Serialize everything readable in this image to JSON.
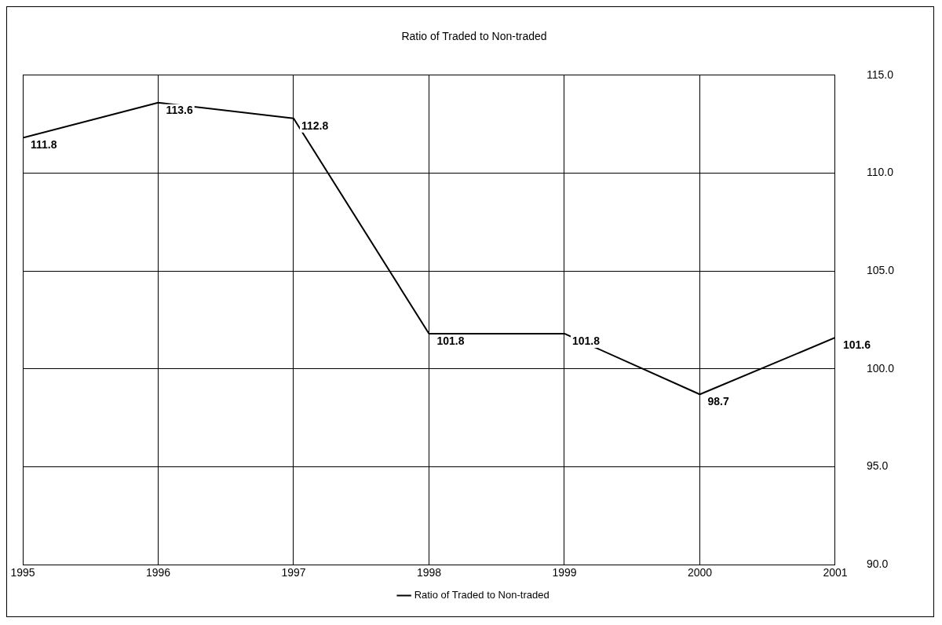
{
  "chart_data": {
    "type": "line",
    "title": "Ratio of Traded to Non-traded",
    "x": [
      1995,
      1996,
      1997,
      1998,
      1999,
      2000,
      2001
    ],
    "series": [
      {
        "name": "Ratio of Traded to Non-traded",
        "color": "#000000",
        "values": [
          111.8,
          113.6,
          112.8,
          101.8,
          101.8,
          98.7,
          101.6
        ]
      }
    ],
    "xlim": [
      1995,
      2001
    ],
    "xticks": [
      1995,
      1996,
      1997,
      1998,
      1999,
      2000,
      2001
    ],
    "ylim": [
      90,
      115
    ],
    "yticks": [
      {
        "value": 90,
        "label": "90.0"
      },
      {
        "value": 95,
        "label": "95.0"
      },
      {
        "value": 100,
        "label": "100.0"
      },
      {
        "value": 105,
        "label": "105.0"
      },
      {
        "value": 110,
        "label": "110.0"
      },
      {
        "value": 115,
        "label": "115.0"
      }
    ],
    "grid": true,
    "legend": "bottom",
    "marker": "none",
    "line_style": "solid",
    "data_labels": true
  }
}
